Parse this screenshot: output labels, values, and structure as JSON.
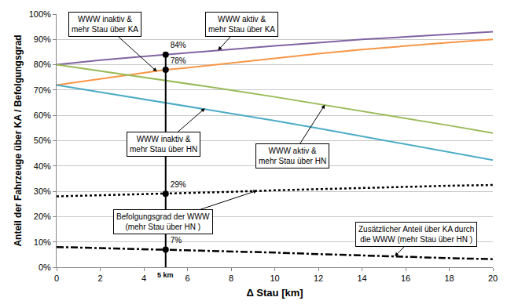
{
  "chart_data": {
    "type": "line",
    "x_label": "Δ Stau [km]",
    "y_label": "Anteil der Fahrzeuge über KA / Befolgungsgrad",
    "x": [
      0,
      2,
      4,
      5,
      6,
      8,
      10,
      12,
      14,
      16,
      18,
      20
    ],
    "series": [
      {
        "name": "WWW aktiv &\nmehr Stau über KA",
        "color": "#8064a2",
        "line_style": "solid",
        "values": [
          80,
          81.8,
          83.3,
          84,
          84.8,
          86.1,
          87.5,
          88.7,
          90,
          91,
          92,
          93
        ]
      },
      {
        "name": "WWW inaktiv &\nmehr Stau über KA",
        "color": "#f79646",
        "line_style": "solid",
        "values": [
          72,
          74.4,
          76.7,
          78,
          78.8,
          80.7,
          82.6,
          84.4,
          86,
          87.5,
          88.8,
          90
        ]
      },
      {
        "name": "WWW aktiv &\nmehr Stau über HN",
        "color": "#9bbb59",
        "line_style": "solid",
        "values": [
          80,
          77.5,
          75,
          73.8,
          72.5,
          70,
          67.3,
          64.5,
          61.7,
          58.9,
          56,
          53
        ]
      },
      {
        "name": "WWW inaktiv &\nmehr Stau über HN",
        "color": "#4bacc6",
        "line_style": "solid",
        "values": [
          72,
          69.2,
          66.4,
          65,
          63.6,
          60.8,
          57.9,
          54.9,
          51.8,
          48.7,
          45.5,
          42.3
        ]
      },
      {
        "name": "Befolgungsgrad der WWW\n(mehr Stau über HN )",
        "color": "#000000",
        "line_style": "dot",
        "values": [
          28,
          28.4,
          28.8,
          29,
          29.2,
          29.8,
          30.4,
          30.9,
          31.4,
          31.8,
          32.2,
          32.5
        ]
      },
      {
        "name": "Zusätzlicher Anteil über KA durch\ndie WWW (mehr Stau über HN )",
        "color": "#000000",
        "line_style": "dashdot",
        "values": [
          8,
          7.6,
          7.2,
          7,
          6.8,
          6.3,
          5.8,
          5.2,
          4.6,
          4.1,
          3.6,
          3.2
        ]
      }
    ],
    "markers": {
      "x": 5,
      "values": [
        84,
        78,
        29,
        7
      ],
      "value_labels": [
        "84%",
        "78%",
        "29%",
        "7%"
      ],
      "color": "#000000"
    },
    "vertical_line": {
      "x": 5,
      "label": "5 km",
      "color": "#000000"
    },
    "xlim": [
      0,
      20
    ],
    "xticks": [
      0,
      2,
      4,
      6,
      8,
      10,
      12,
      14,
      16,
      18,
      20
    ],
    "ylim": [
      0,
      100
    ],
    "yticks": [
      {
        "value": 0,
        "label": "0%"
      },
      {
        "value": 10,
        "label": "10%"
      },
      {
        "value": 20,
        "label": "20%"
      },
      {
        "value": 30,
        "label": "30%"
      },
      {
        "value": 40,
        "label": "40%"
      },
      {
        "value": 50,
        "label": "50%"
      },
      {
        "value": 60,
        "label": "60%"
      },
      {
        "value": 70,
        "label": "70%"
      },
      {
        "value": 80,
        "label": "80%"
      },
      {
        "value": 90,
        "label": "90%"
      },
      {
        "value": 100,
        "label": "100%"
      }
    ],
    "grid": "y"
  }
}
